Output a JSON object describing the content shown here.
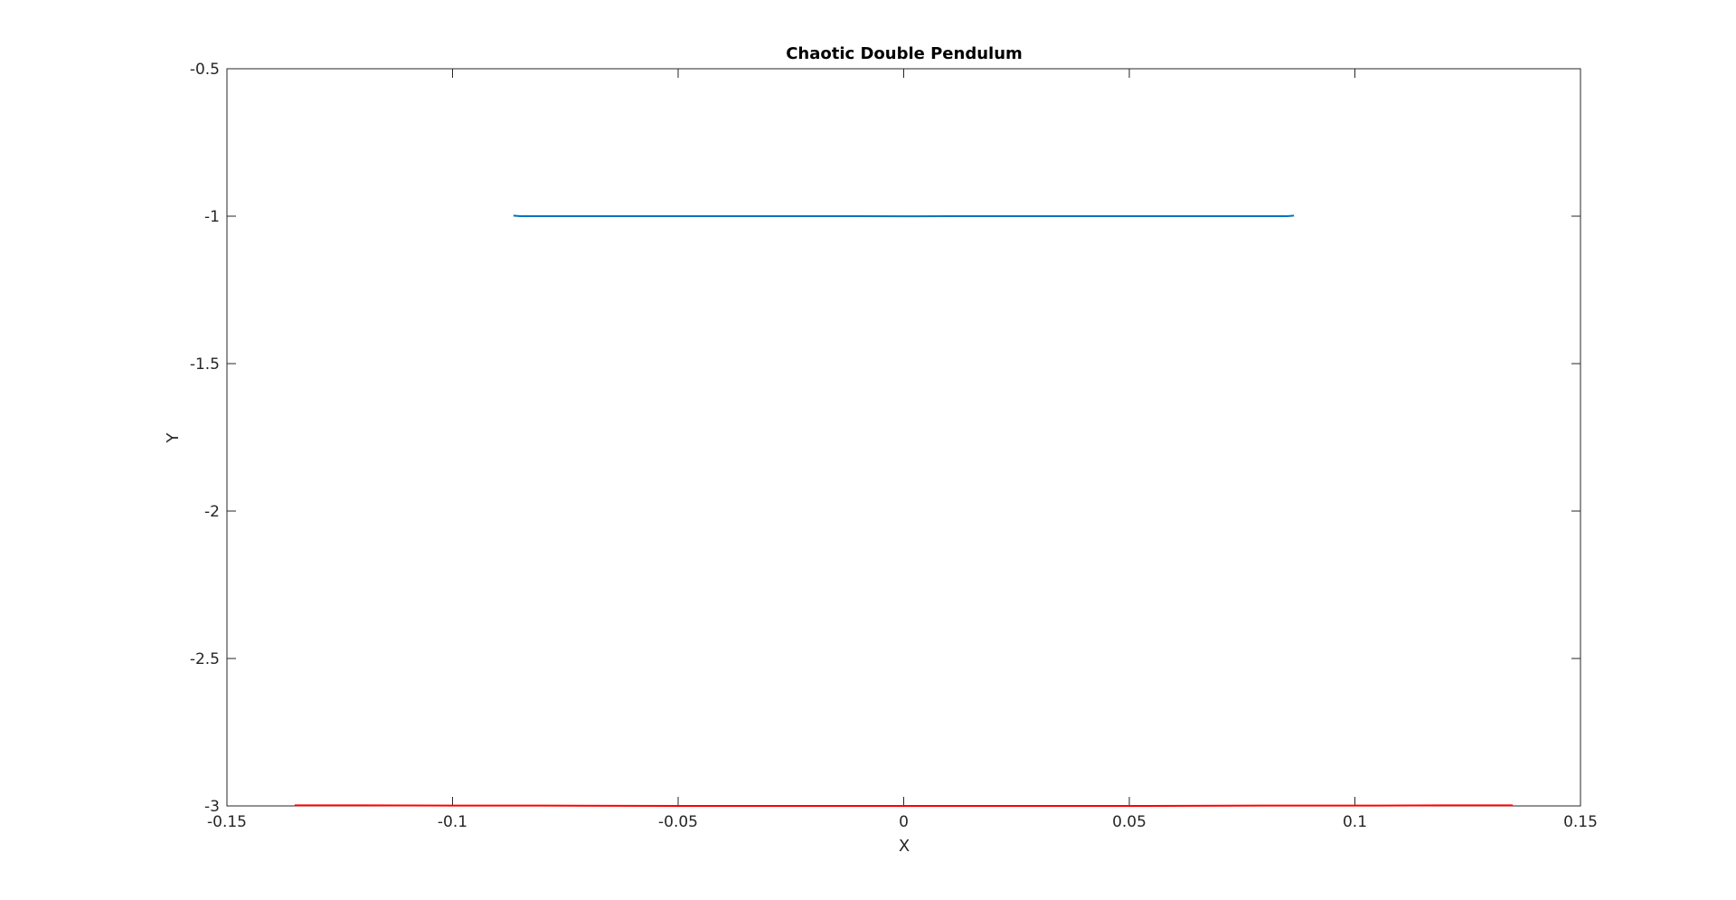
{
  "chart_data": {
    "type": "line",
    "title": "Chaotic Double Pendulum",
    "xlabel": "X",
    "ylabel": "Y",
    "xlim": [
      -0.15,
      0.15
    ],
    "ylim": [
      -3,
      -0.5
    ],
    "xticks": [
      -0.15,
      -0.1,
      -0.05,
      0,
      0.05,
      0.1,
      0.15
    ],
    "xtick_labels": [
      "-0.15",
      "-0.1",
      "-0.05",
      "0",
      "0.05",
      "0.1",
      "0.15"
    ],
    "yticks": [
      -3,
      -2.5,
      -2,
      -1.5,
      -1,
      -0.5
    ],
    "ytick_labels": [
      "-3",
      "-2.5",
      "-2",
      "-1.5",
      "-1",
      "-0.5"
    ],
    "grid": false,
    "series": [
      {
        "color": "#0072BD",
        "x": [
          -0.0865,
          -0.085,
          -0.07,
          -0.05,
          -0.03,
          -0.01,
          0,
          0.01,
          0.03,
          0.05,
          0.07,
          0.085,
          0.0865
        ],
        "y": [
          -0.998,
          -1.0,
          -1.0,
          -1.0,
          -1.0,
          -1.0,
          -1.0005,
          -1.0,
          -1.0,
          -1.0,
          -1.0,
          -1.0,
          -0.998
        ]
      },
      {
        "color": "#FF0000",
        "x": [
          -0.135,
          -0.12,
          -0.1,
          -0.08,
          -0.05,
          -0.02,
          0,
          0.02,
          0.05,
          0.08,
          0.1,
          0.12,
          0.135
        ],
        "y": [
          -2.998,
          -2.998,
          -2.999,
          -2.999,
          -3.0,
          -3.0,
          -3.0,
          -3.0,
          -3.0,
          -2.999,
          -2.999,
          -2.998,
          -2.998
        ]
      }
    ]
  }
}
